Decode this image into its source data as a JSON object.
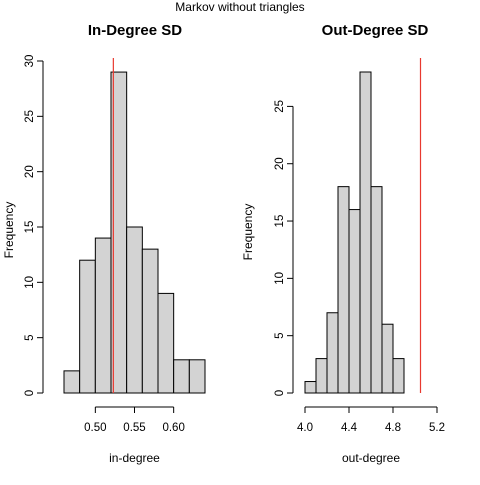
{
  "suptitle": "Markov without triangles",
  "chart_data": [
    {
      "type": "bar",
      "title": "In-Degree SD",
      "xlabel": "in-degree",
      "ylabel": "Frequency",
      "bins": [
        {
          "from": 0.46,
          "to": 0.48,
          "count": 2
        },
        {
          "from": 0.48,
          "to": 0.5,
          "count": 12
        },
        {
          "from": 0.5,
          "to": 0.52,
          "count": 14
        },
        {
          "from": 0.52,
          "to": 0.54,
          "count": 29
        },
        {
          "from": 0.54,
          "to": 0.56,
          "count": 15
        },
        {
          "from": 0.56,
          "to": 0.58,
          "count": 13
        },
        {
          "from": 0.58,
          "to": 0.6,
          "count": 9
        },
        {
          "from": 0.6,
          "to": 0.62,
          "count": 3
        },
        {
          "from": 0.62,
          "to": 0.64,
          "count": 3
        }
      ],
      "xlim": [
        0.46,
        0.64
      ],
      "ylim": [
        0,
        30
      ],
      "xticks": [
        0.5,
        0.55,
        0.6
      ],
      "xtick_labels": [
        "0.50",
        "0.55",
        "0.60"
      ],
      "yticks": [
        0,
        5,
        10,
        15,
        20,
        25,
        30
      ],
      "ytick_labels": [
        "0",
        "5",
        "10",
        "15",
        "20",
        "25",
        "30"
      ],
      "reference_line": 0.523,
      "bar_color": "#d3d3d3",
      "line_color": "#e8392f"
    },
    {
      "type": "bar",
      "title": "Out-Degree SD",
      "xlabel": "out-degree",
      "ylabel": "Frequency",
      "bins": [
        {
          "from": 4.0,
          "to": 4.1,
          "count": 1
        },
        {
          "from": 4.1,
          "to": 4.2,
          "count": 3
        },
        {
          "from": 4.2,
          "to": 4.3,
          "count": 7
        },
        {
          "from": 4.3,
          "to": 4.4,
          "count": 18
        },
        {
          "from": 4.4,
          "to": 4.5,
          "count": 16
        },
        {
          "from": 4.5,
          "to": 4.6,
          "count": 28
        },
        {
          "from": 4.6,
          "to": 4.7,
          "count": 18
        },
        {
          "from": 4.7,
          "to": 4.8,
          "count": 6
        },
        {
          "from": 4.8,
          "to": 4.9,
          "count": 3
        }
      ],
      "xlim": [
        4.0,
        5.2
      ],
      "ylim": [
        0,
        28
      ],
      "xticks": [
        4.0,
        4.4,
        4.8,
        5.2
      ],
      "xtick_labels": [
        "4.0",
        "4.4",
        "4.8",
        "5.2"
      ],
      "yticks": [
        0,
        5,
        10,
        15,
        20,
        25
      ],
      "ytick_labels": [
        "0",
        "5",
        "10",
        "15",
        "20",
        "25"
      ],
      "reference_line": 5.05,
      "bar_color": "#d3d3d3",
      "line_color": "#e8392f"
    }
  ]
}
